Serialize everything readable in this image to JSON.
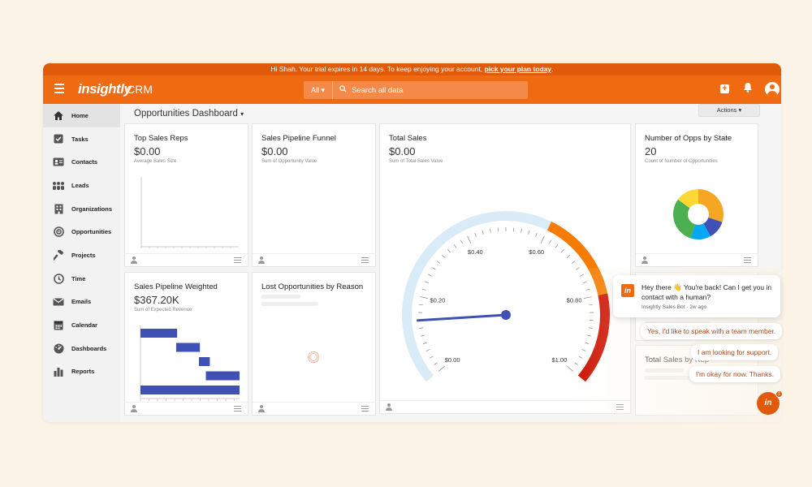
{
  "trial_banner": {
    "text": "Hi Shah. Your trial expires in 14 days. To keep enjoying your account, ",
    "link": "pick your plan today",
    "suffix": "."
  },
  "topnav": {
    "logo": "insightly",
    "product": "CRM",
    "search_scope": "All",
    "search_placeholder": "Search all data"
  },
  "sidebar": {
    "items": [
      {
        "label": "Home",
        "icon": "home-icon"
      },
      {
        "label": "Tasks",
        "icon": "checkbox-icon"
      },
      {
        "label": "Contacts",
        "icon": "contact-card-icon"
      },
      {
        "label": "Leads",
        "icon": "people-icon"
      },
      {
        "label": "Organizations",
        "icon": "building-icon"
      },
      {
        "label": "Opportunities",
        "icon": "target-icon"
      },
      {
        "label": "Projects",
        "icon": "hammer-icon"
      },
      {
        "label": "Time",
        "icon": "clock-icon"
      },
      {
        "label": "Emails",
        "icon": "envelope-icon"
      },
      {
        "label": "Calendar",
        "icon": "calendar-icon"
      },
      {
        "label": "Dashboards",
        "icon": "dashboard-icon"
      },
      {
        "label": "Reports",
        "icon": "bar-chart-icon"
      }
    ]
  },
  "dashboard": {
    "title": "Opportunities Dashboard",
    "actions_label": "Actions"
  },
  "cards": {
    "top_sales_reps": {
      "title": "Top Sales Reps",
      "value": "$0.00",
      "sub": "Average Sales Size"
    },
    "pipeline_funnel": {
      "title": "Sales Pipeline Funnel",
      "value": "$0.00",
      "sub": "Sum of Opportunity Value"
    },
    "total_sales": {
      "title": "Total Sales",
      "value": "$0.00",
      "sub": "Sum of Total Sales Value"
    },
    "opps_by_state": {
      "title": "Number of Opps by State",
      "value": "20",
      "sub": "Count of Number of Opportunities"
    },
    "pipeline_weighted": {
      "title": "Sales Pipeline Weighted",
      "value": "$367.20K",
      "sub": "Sum of Expected Revenue"
    },
    "lost_opps": {
      "title": "Lost Opportunities by Reason"
    },
    "total_sales_by_rep": {
      "title": "Total Sales by Rep"
    }
  },
  "gauge": {
    "tick_labels": [
      "$0.00",
      "$0.20",
      "$0.40",
      "$0.60",
      "$0.80",
      "$1.00"
    ],
    "value": 0.0,
    "colors": {
      "track": "#d9ebf7",
      "orange": "#f57c00",
      "red": "#cc1100",
      "needle": "#3f51b5"
    }
  },
  "donut": {
    "segments": [
      {
        "value": 0.3,
        "color": "#f5a623"
      },
      {
        "value": 0.12,
        "color": "#3f51b5"
      },
      {
        "value": 0.13,
        "color": "#03a9f4"
      },
      {
        "value": 0.3,
        "color": "#4caf50"
      },
      {
        "value": 0.15,
        "color": "#fdd835"
      }
    ]
  },
  "weighted_bars": {
    "color": "#3f51b5",
    "bars": [
      {
        "start": 0.0,
        "end": 0.37
      },
      {
        "start": 0.36,
        "end": 0.6
      },
      {
        "start": 0.59,
        "end": 0.7
      },
      {
        "start": 0.66,
        "end": 1.0
      },
      {
        "start": 0.0,
        "end": 1.0
      }
    ]
  },
  "chat": {
    "message": "Hey there 👋 You're back! Can I get you in contact with a human?",
    "meta": "Insightly Sales Bot · 2w ago",
    "replies": [
      "Yes, I'd like to speak with a team member.",
      "I am looking for support.",
      "I'm okay for now. Thanks."
    ],
    "launcher_label": "in",
    "badge": "1"
  }
}
